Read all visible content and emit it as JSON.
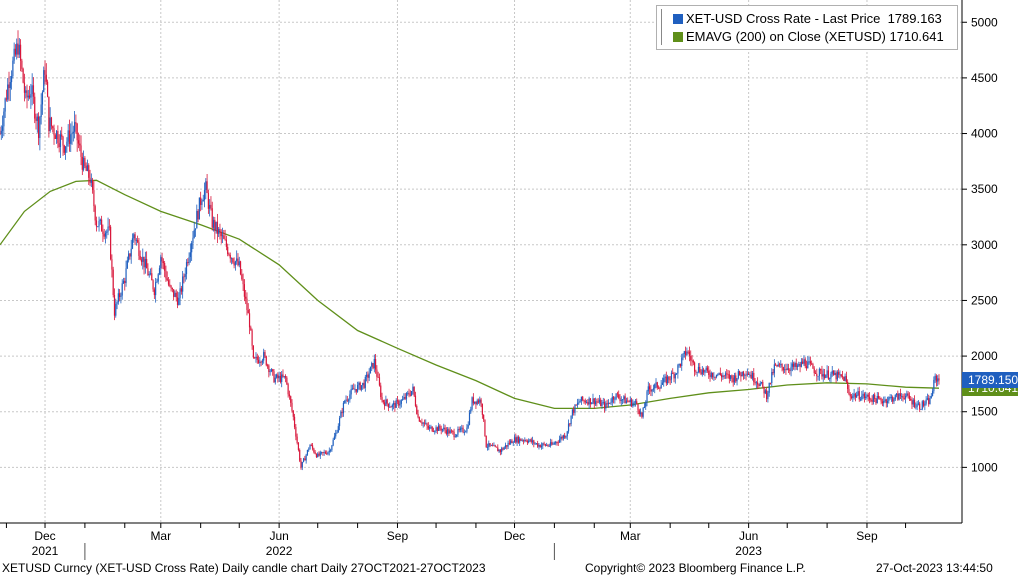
{
  "legend": {
    "series1": "XET-USD Cross Rate - Last Price",
    "series1_value": "1789.163",
    "series2": "EMAVG (200)  on Close (XETUSD)",
    "series2_value": "1710.641"
  },
  "tags": {
    "price": "1789.150",
    "ema": "1710.641"
  },
  "footer": {
    "left": "XETUSD Curncy (XET-USD Cross Rate) Daily candle chart  Daily 27OCT2021-27OCT2023",
    "center": "Copyright© 2023 Bloomberg Finance L.P.",
    "right": "27-Oct-2023 13:44:50"
  },
  "colors": {
    "up": "#1f5fbf",
    "down": "#d8163a",
    "ema": "#5f8f1a",
    "grid": "#c8c8c8",
    "tag_price_bg": "#1f5fbf",
    "tag_ema_bg": "#5f8f1a"
  },
  "chart_data": {
    "type": "line",
    "title": "",
    "xlabel": "",
    "ylabel": "",
    "ylim": [
      500,
      5200
    ],
    "yticks": [
      1000,
      1500,
      2000,
      2500,
      3000,
      3500,
      4000,
      4500,
      5000
    ],
    "grid": true,
    "legend_position": "top-right",
    "x_month_ticks": [
      "2021-12",
      "2022-03",
      "2022-06",
      "2022-09",
      "2022-12",
      "2023-03",
      "2023-06",
      "2023-09"
    ],
    "x_month_labels": [
      "Dec",
      "Mar",
      "Jun",
      "Sep",
      "Dec",
      "Mar",
      "Jun",
      "Sep"
    ],
    "x_year_labels": [
      {
        "date": "2021-12",
        "label": "2021"
      },
      {
        "date": "2022-06",
        "label": "2022"
      },
      {
        "date": "2023-06",
        "label": "2023"
      }
    ],
    "xlim": [
      "2021-10-27",
      "2023-10-27"
    ],
    "series": [
      {
        "name": "XET-USD Cross Rate - Last Price",
        "style": "candle",
        "points": [
          [
            "2021-10-27",
            4000
          ],
          [
            "2021-11-03",
            4500
          ],
          [
            "2021-11-08",
            4700
          ],
          [
            "2021-11-10",
            4800
          ],
          [
            "2021-11-16",
            4300
          ],
          [
            "2021-11-20",
            4400
          ],
          [
            "2021-11-26",
            4050
          ],
          [
            "2021-12-01",
            4600
          ],
          [
            "2021-12-04",
            4100
          ],
          [
            "2021-12-10",
            4000
          ],
          [
            "2021-12-16",
            3900
          ],
          [
            "2021-12-24",
            4050
          ],
          [
            "2021-12-31",
            3700
          ],
          [
            "2022-01-05",
            3600
          ],
          [
            "2022-01-10",
            3200
          ],
          [
            "2022-01-20",
            3100
          ],
          [
            "2022-01-24",
            2400
          ],
          [
            "2022-02-01",
            2700
          ],
          [
            "2022-02-08",
            3100
          ],
          [
            "2022-02-14",
            2900
          ],
          [
            "2022-02-24",
            2600
          ],
          [
            "2022-03-01",
            2900
          ],
          [
            "2022-03-08",
            2600
          ],
          [
            "2022-03-15",
            2500
          ],
          [
            "2022-03-24",
            3000
          ],
          [
            "2022-04-02",
            3450
          ],
          [
            "2022-04-05",
            3500
          ],
          [
            "2022-04-10",
            3200
          ],
          [
            "2022-04-18",
            3050
          ],
          [
            "2022-04-25",
            2900
          ],
          [
            "2022-05-01",
            2800
          ],
          [
            "2022-05-09",
            2300
          ],
          [
            "2022-05-12",
            1950
          ],
          [
            "2022-05-20",
            2000
          ],
          [
            "2022-05-28",
            1800
          ],
          [
            "2022-06-06",
            1800
          ],
          [
            "2022-06-12",
            1450
          ],
          [
            "2022-06-18",
            1000
          ],
          [
            "2022-06-25",
            1200
          ],
          [
            "2022-07-01",
            1100
          ],
          [
            "2022-07-10",
            1150
          ],
          [
            "2022-07-15",
            1300
          ],
          [
            "2022-07-22",
            1600
          ],
          [
            "2022-07-29",
            1700
          ],
          [
            "2022-08-06",
            1750
          ],
          [
            "2022-08-14",
            1950
          ],
          [
            "2022-08-20",
            1600
          ],
          [
            "2022-08-28",
            1550
          ],
          [
            "2022-09-05",
            1600
          ],
          [
            "2022-09-13",
            1700
          ],
          [
            "2022-09-17",
            1450
          ],
          [
            "2022-09-25",
            1350
          ],
          [
            "2022-10-05",
            1350
          ],
          [
            "2022-10-15",
            1300
          ],
          [
            "2022-10-25",
            1350
          ],
          [
            "2022-10-29",
            1600
          ],
          [
            "2022-11-05",
            1600
          ],
          [
            "2022-11-09",
            1200
          ],
          [
            "2022-11-20",
            1150
          ],
          [
            "2022-11-30",
            1250
          ],
          [
            "2022-12-10",
            1250
          ],
          [
            "2022-12-20",
            1200
          ],
          [
            "2022-12-30",
            1200
          ],
          [
            "2023-01-10",
            1300
          ],
          [
            "2023-01-15",
            1500
          ],
          [
            "2023-01-21",
            1600
          ],
          [
            "2023-02-01",
            1600
          ],
          [
            "2023-02-10",
            1550
          ],
          [
            "2023-02-17",
            1650
          ],
          [
            "2023-02-25",
            1600
          ],
          [
            "2023-03-06",
            1570
          ],
          [
            "2023-03-10",
            1450
          ],
          [
            "2023-03-15",
            1700
          ],
          [
            "2023-03-25",
            1750
          ],
          [
            "2023-04-05",
            1850
          ],
          [
            "2023-04-14",
            2050
          ],
          [
            "2023-04-20",
            1900
          ],
          [
            "2023-04-30",
            1850
          ],
          [
            "2023-05-10",
            1830
          ],
          [
            "2023-05-20",
            1800
          ],
          [
            "2023-05-30",
            1870
          ],
          [
            "2023-06-10",
            1750
          ],
          [
            "2023-06-15",
            1650
          ],
          [
            "2023-06-21",
            1900
          ],
          [
            "2023-06-30",
            1900
          ],
          [
            "2023-07-10",
            1900
          ],
          [
            "2023-07-14",
            1950
          ],
          [
            "2023-07-25",
            1850
          ],
          [
            "2023-08-05",
            1830
          ],
          [
            "2023-08-15",
            1800
          ],
          [
            "2023-08-18",
            1650
          ],
          [
            "2023-08-25",
            1650
          ],
          [
            "2023-09-05",
            1620
          ],
          [
            "2023-09-12",
            1600
          ],
          [
            "2023-09-20",
            1620
          ],
          [
            "2023-09-30",
            1650
          ],
          [
            "2023-10-05",
            1600
          ],
          [
            "2023-10-12",
            1550
          ],
          [
            "2023-10-20",
            1600
          ],
          [
            "2023-10-24",
            1800
          ],
          [
            "2023-10-27",
            1789
          ]
        ]
      },
      {
        "name": "EMAVG (200)  on Close (XETUSD)",
        "style": "line",
        "points": [
          [
            "2021-10-27",
            3000
          ],
          [
            "2021-11-15",
            3300
          ],
          [
            "2021-12-05",
            3480
          ],
          [
            "2021-12-25",
            3570
          ],
          [
            "2022-01-10",
            3580
          ],
          [
            "2022-02-01",
            3450
          ],
          [
            "2022-03-01",
            3300
          ],
          [
            "2022-04-01",
            3180
          ],
          [
            "2022-05-01",
            3050
          ],
          [
            "2022-06-01",
            2820
          ],
          [
            "2022-07-01",
            2500
          ],
          [
            "2022-08-01",
            2230
          ],
          [
            "2022-09-01",
            2070
          ],
          [
            "2022-10-01",
            1920
          ],
          [
            "2022-11-01",
            1780
          ],
          [
            "2022-12-01",
            1620
          ],
          [
            "2023-01-01",
            1530
          ],
          [
            "2023-02-01",
            1530
          ],
          [
            "2023-03-01",
            1560
          ],
          [
            "2023-04-01",
            1620
          ],
          [
            "2023-05-01",
            1670
          ],
          [
            "2023-06-01",
            1700
          ],
          [
            "2023-07-01",
            1740
          ],
          [
            "2023-08-01",
            1760
          ],
          [
            "2023-09-01",
            1750
          ],
          [
            "2023-10-01",
            1720
          ],
          [
            "2023-10-27",
            1711
          ]
        ]
      }
    ]
  }
}
